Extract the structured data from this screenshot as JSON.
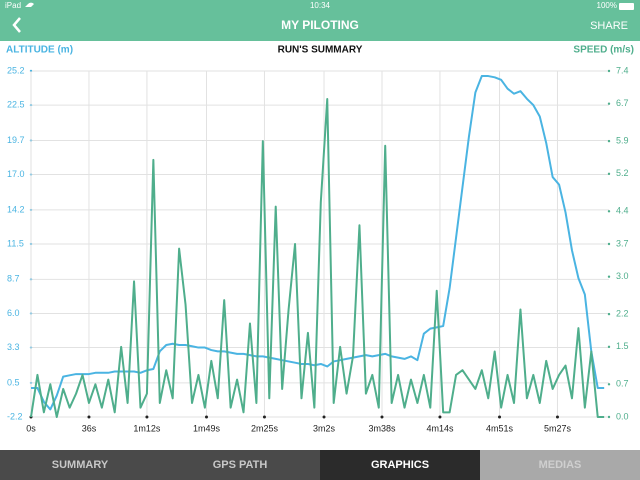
{
  "status_bar": {
    "carrier": "iPad",
    "time": "10:34",
    "battery": "100%"
  },
  "header": {
    "title": "MY PILOTING",
    "action": "SHARE"
  },
  "chart_data": {
    "type": "line",
    "title": "RUN'S SUMMARY",
    "x": [
      0,
      4,
      8,
      12,
      16,
      20,
      24,
      28,
      32,
      36,
      40,
      44,
      48,
      52,
      56,
      60,
      64,
      68,
      72,
      76,
      80,
      84,
      88,
      92,
      96,
      100,
      104,
      108,
      112,
      116,
      120,
      124,
      128,
      132,
      136,
      140,
      144,
      148,
      152,
      156,
      160,
      164,
      168,
      172,
      176,
      180,
      184,
      188,
      192,
      196,
      200,
      204,
      208,
      212,
      216,
      220,
      224,
      228,
      232,
      236,
      240,
      244,
      248,
      252,
      256,
      260,
      264,
      268,
      272,
      276,
      280,
      284,
      288,
      292,
      296,
      300,
      304,
      308,
      312,
      316,
      320,
      324,
      328,
      332,
      336,
      340,
      344,
      348,
      352,
      356
    ],
    "xlim": [
      0,
      359
    ],
    "xticks": [
      {
        "value": 0,
        "label": "0s"
      },
      {
        "value": 36,
        "label": "36s"
      },
      {
        "value": 72,
        "label": "1m12s"
      },
      {
        "value": 109,
        "label": "1m49s"
      },
      {
        "value": 145,
        "label": "2m25s"
      },
      {
        "value": 182,
        "label": "3m2s"
      },
      {
        "value": 218,
        "label": "3m38s"
      },
      {
        "value": 254,
        "label": "4m14s"
      },
      {
        "value": 291,
        "label": "4m51s"
      },
      {
        "value": 327,
        "label": "5m27s"
      }
    ],
    "ylim": [
      -2.2,
      25.2
    ],
    "yticks": [
      25.2,
      22.5,
      19.7,
      {
        "value": 17,
        "label": "17.0"
      },
      14.2,
      11.5,
      8.7,
      {
        "value": 6,
        "label": "6.0"
      },
      3.3,
      0.5,
      -2.2
    ],
    "y2lim": [
      0,
      7.4
    ],
    "y2ticks": [
      7.4,
      6.7,
      5.9,
      5.2,
      4.4,
      3.7,
      {
        "value": 3,
        "label": "3.0"
      },
      2.2,
      1.5,
      0.7,
      {
        "value": 0,
        "label": "0.0"
      }
    ],
    "grid": true,
    "series": [
      {
        "name": "ALTITUDE (m)",
        "color": "#4ab4e2",
        "values": [
          0.1,
          0.1,
          -1.0,
          -1.6,
          -0.5,
          1.0,
          1.1,
          1.2,
          1.2,
          1.2,
          1.3,
          1.3,
          1.3,
          1.4,
          1.4,
          1.4,
          1.4,
          1.3,
          1.5,
          1.6,
          3.0,
          3.5,
          3.6,
          3.5,
          3.5,
          3.4,
          3.3,
          3.3,
          3.1,
          3.0,
          3.0,
          2.9,
          2.8,
          2.8,
          2.7,
          2.6,
          2.6,
          2.5,
          2.4,
          2.3,
          2.2,
          2.1,
          2.0,
          2.0,
          1.9,
          2.0,
          1.8,
          2.2,
          2.3,
          2.4,
          2.5,
          2.6,
          2.7,
          2.6,
          2.7,
          2.8,
          2.6,
          2.5,
          2.4,
          2.6,
          2.3,
          4.4,
          4.8,
          4.9,
          5.0,
          8.0,
          12.0,
          16.0,
          20.0,
          23.5,
          24.8,
          24.8,
          24.7,
          24.5,
          23.8,
          23.4,
          23.6,
          23.0,
          22.5,
          21.6,
          19.5,
          16.8,
          16.2,
          14.0,
          11.0,
          8.8,
          7.5,
          3.0,
          0.1,
          0.1
        ]
      },
      {
        "name": "SPEED (m/s)",
        "color": "#4fae8c",
        "axis": "y2",
        "values": [
          0.0,
          0.9,
          0.1,
          0.7,
          0.0,
          0.6,
          0.2,
          0.5,
          0.9,
          0.3,
          0.7,
          0.2,
          0.8,
          0.1,
          1.5,
          0.3,
          2.9,
          0.2,
          0.5,
          5.5,
          0.3,
          1.0,
          0.4,
          3.6,
          2.4,
          0.3,
          0.9,
          0.2,
          1.2,
          0.4,
          2.5,
          0.2,
          0.8,
          0.1,
          2.0,
          0.3,
          5.9,
          0.4,
          4.5,
          0.6,
          2.3,
          3.7,
          0.4,
          1.8,
          0.2,
          4.6,
          6.8,
          0.3,
          1.5,
          0.5,
          1.3,
          4.1,
          0.5,
          0.9,
          0.2,
          5.8,
          0.3,
          0.9,
          0.2,
          0.8,
          0.3,
          0.9,
          0.2,
          2.7,
          0.1,
          0.1,
          0.9,
          1.0,
          0.8,
          0.6,
          1.0,
          0.4,
          1.4,
          0.2,
          0.9,
          0.3,
          2.3,
          0.4,
          0.9,
          0.3,
          1.2,
          0.6,
          0.9,
          1.1,
          0.4,
          1.9,
          0.2,
          1.4,
          0.0,
          0.0
        ]
      }
    ]
  },
  "tabs": [
    {
      "label": "SUMMARY",
      "state": "normal"
    },
    {
      "label": "GPS PATH",
      "state": "normal"
    },
    {
      "label": "GRAPHICS",
      "state": "active"
    },
    {
      "label": "MEDIAS",
      "state": "disabled"
    }
  ]
}
